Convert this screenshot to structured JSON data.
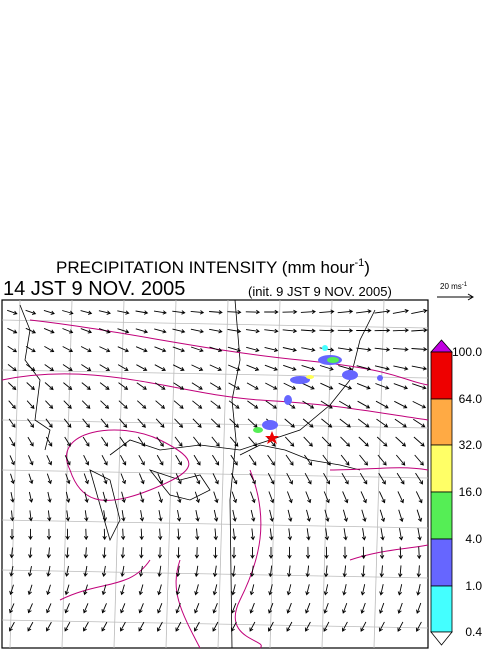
{
  "header": {
    "title": "PRECIPITATION INTENSITY (mm hour",
    "title_exponent": "-1",
    "title_close": ")",
    "valid_time": "14 JST 9 NOV. 2005",
    "init_time": "(init. 9 JST 9 NOV. 2005)"
  },
  "vector_scale": {
    "label": "20 ms",
    "exponent": "-1"
  },
  "legend": {
    "labels": [
      "100.0",
      "64.0",
      "32.0",
      "16.0",
      "4.0",
      "1.0",
      "0.4"
    ]
  }
}
